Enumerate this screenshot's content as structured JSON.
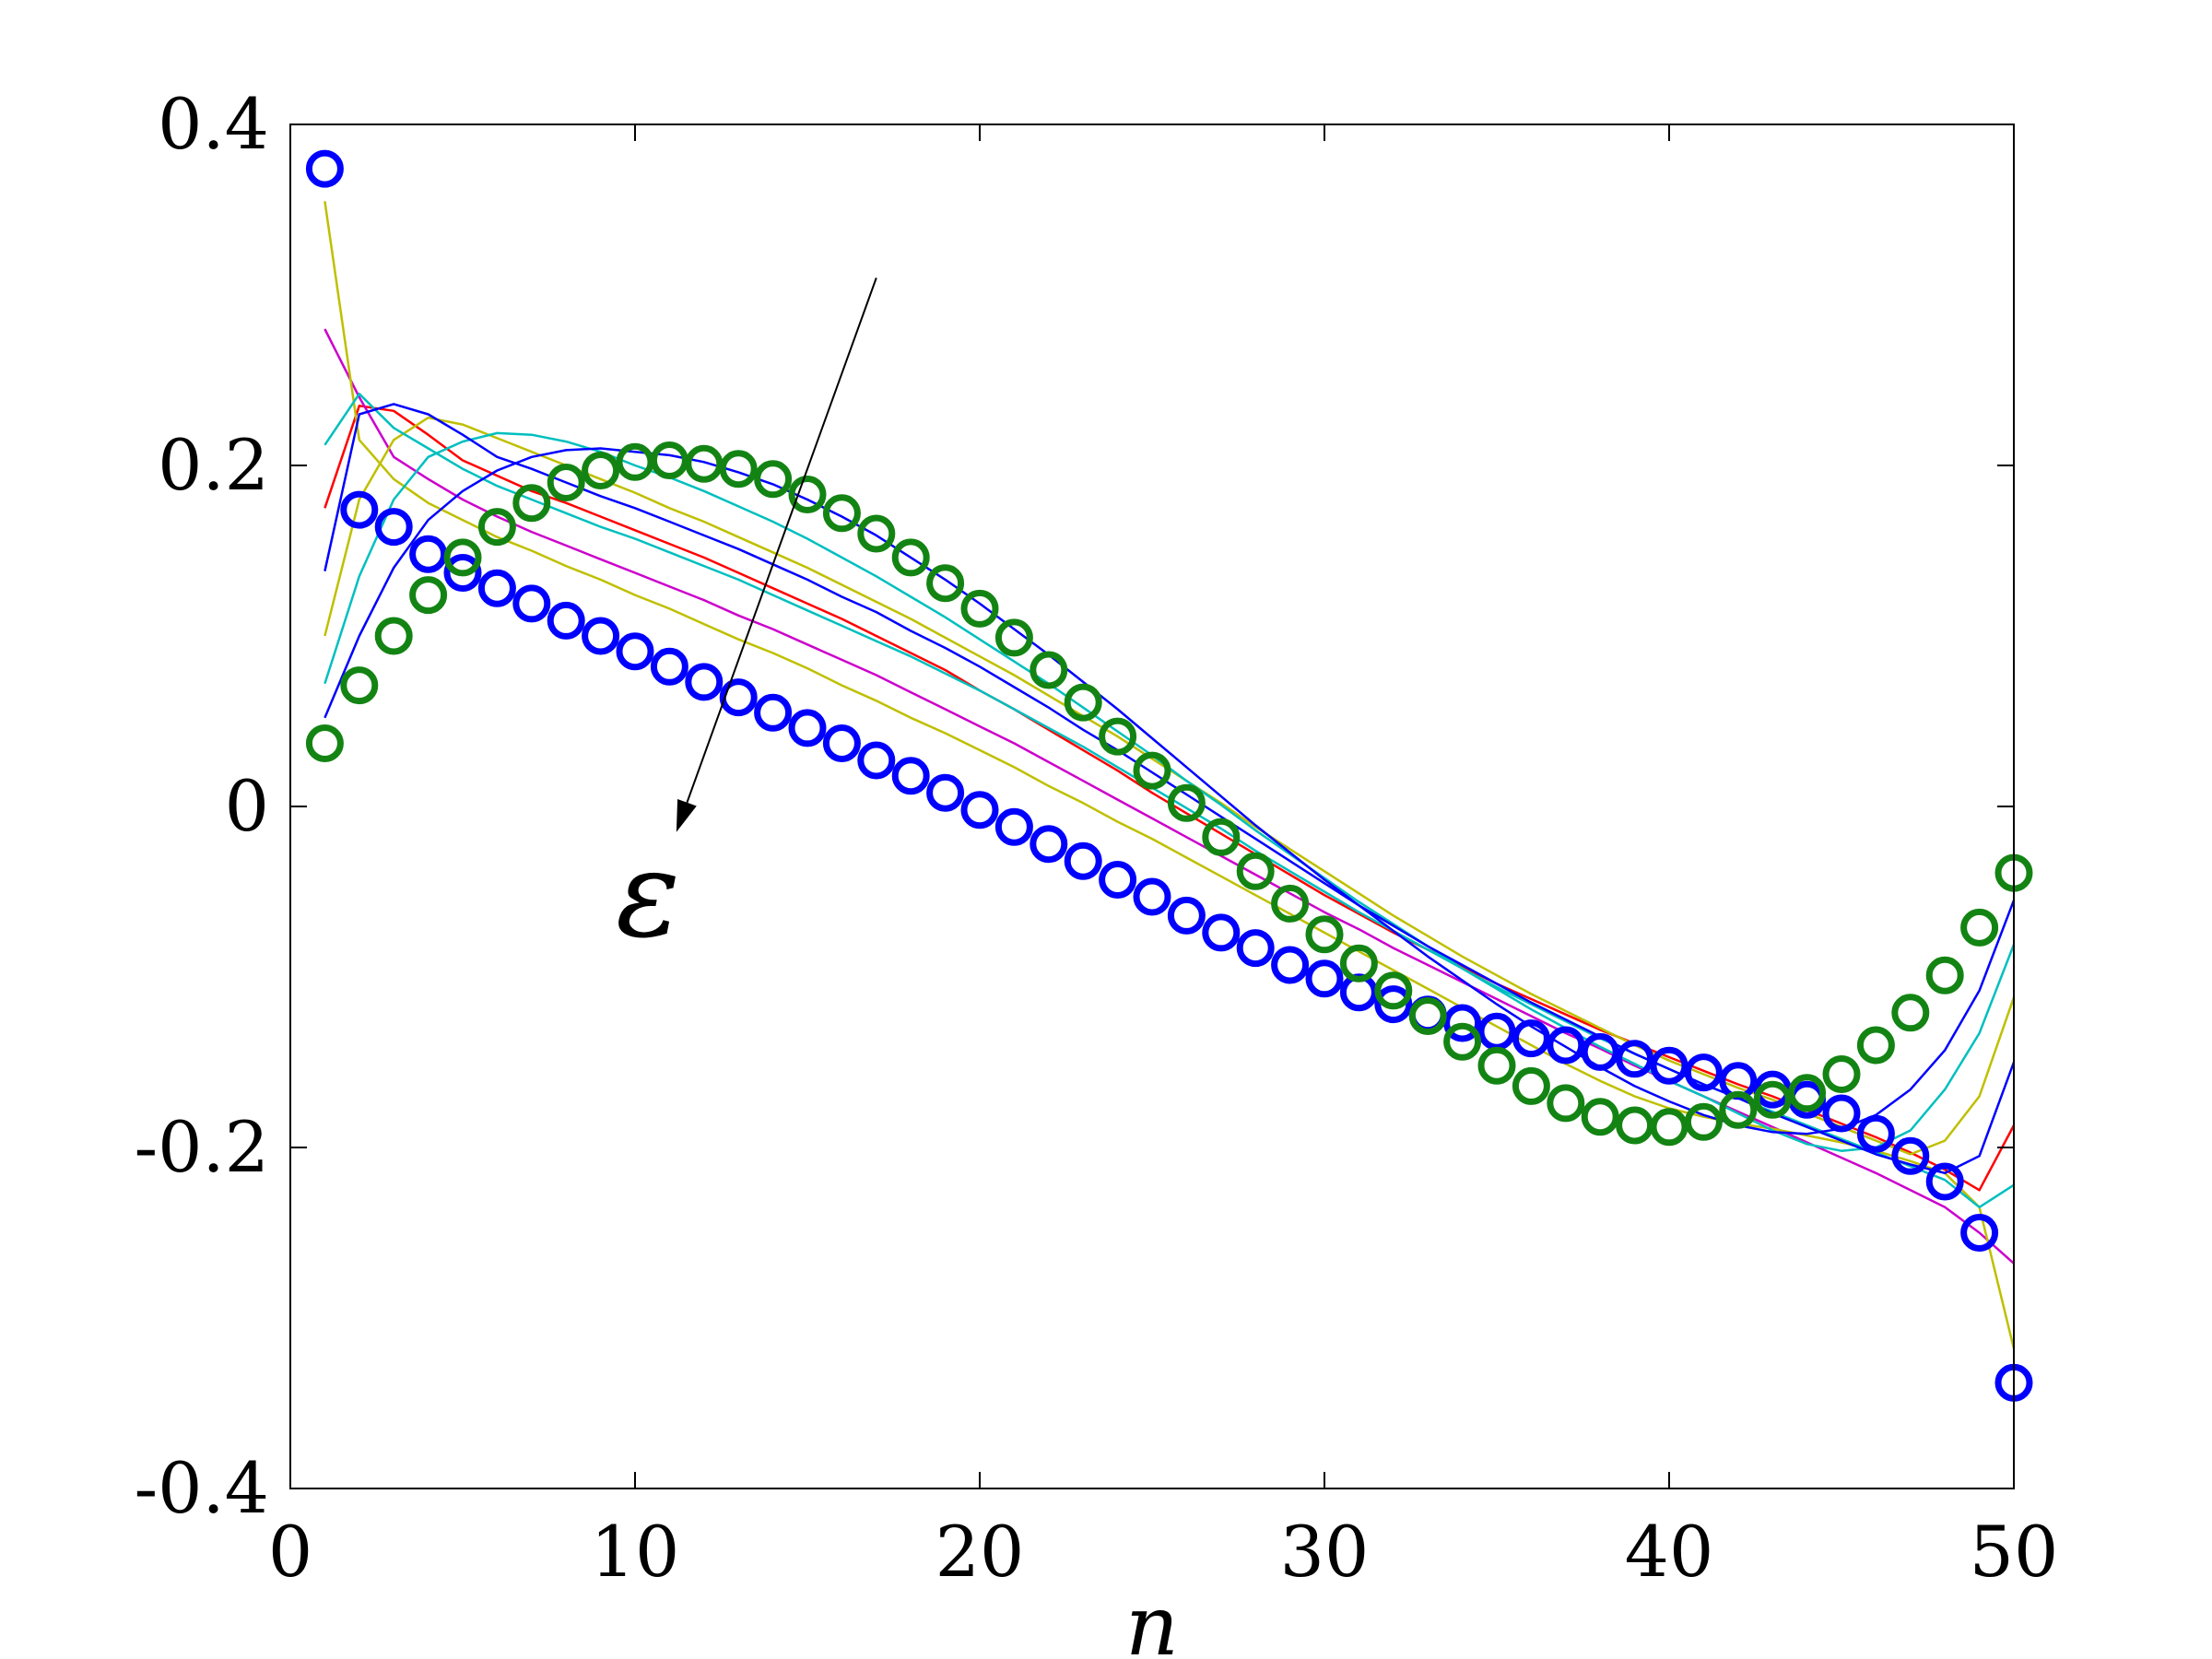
{
  "chart_data": {
    "type": "line",
    "title": "",
    "xlabel": "n",
    "ylabel": "",
    "xlim": [
      0,
      50
    ],
    "ylim": [
      -0.4,
      0.4
    ],
    "x_ticks": [
      0,
      10,
      20,
      30,
      40,
      50
    ],
    "x_tick_labels": [
      "0",
      "10",
      "20",
      "30",
      "40",
      "50"
    ],
    "y_ticks": [
      0.4,
      0.2,
      0,
      -0.2,
      -0.4
    ],
    "y_tick_labels": [
      "0.4",
      "0.2",
      "0",
      "-0.2",
      "-0.4"
    ],
    "grid": false,
    "legend": "none",
    "annotation": {
      "text": "ε",
      "arrow_from": [
        17,
        0.31
      ],
      "arrow_to": [
        11.2,
        -0.015
      ]
    },
    "x": [
      1,
      2,
      3,
      4,
      5,
      6,
      7,
      8,
      9,
      10,
      11,
      12,
      13,
      14,
      15,
      16,
      17,
      18,
      19,
      20,
      21,
      22,
      23,
      24,
      25,
      26,
      27,
      28,
      29,
      30,
      31,
      32,
      33,
      34,
      35,
      36,
      37,
      38,
      39,
      40,
      41,
      42,
      43,
      44,
      45,
      46,
      47,
      48,
      49,
      50
    ],
    "series": [
      {
        "style": "markers",
        "color": "#0000ff",
        "values": [
          0.374,
          0.174,
          0.164,
          0.148,
          0.137,
          0.128,
          0.119,
          0.109,
          0.1,
          0.091,
          0.082,
          0.073,
          0.064,
          0.055,
          0.046,
          0.037,
          0.027,
          0.018,
          0.008,
          -0.002,
          -0.012,
          -0.022,
          -0.032,
          -0.043,
          -0.053,
          -0.064,
          -0.074,
          -0.083,
          -0.093,
          -0.101,
          -0.109,
          -0.116,
          -0.122,
          -0.127,
          -0.132,
          -0.136,
          -0.14,
          -0.144,
          -0.148,
          -0.152,
          -0.156,
          -0.161,
          -0.166,
          -0.172,
          -0.18,
          -0.192,
          -0.205,
          -0.22,
          -0.25,
          -0.338
        ]
      },
      {
        "style": "markers",
        "color": "#138413",
        "values": [
          0.037,
          0.071,
          0.1,
          0.124,
          0.146,
          0.164,
          0.178,
          0.19,
          0.197,
          0.202,
          0.203,
          0.201,
          0.198,
          0.192,
          0.183,
          0.172,
          0.16,
          0.146,
          0.131,
          0.116,
          0.099,
          0.08,
          0.061,
          0.041,
          0.021,
          0.002,
          -0.018,
          -0.038,
          -0.057,
          -0.075,
          -0.092,
          -0.108,
          -0.123,
          -0.138,
          -0.152,
          -0.164,
          -0.174,
          -0.182,
          -0.187,
          -0.188,
          -0.185,
          -0.178,
          -0.172,
          -0.168,
          -0.157,
          -0.14,
          -0.121,
          -0.099,
          -0.071,
          -0.039
        ]
      },
      {
        "style": "line",
        "color": "#ff0000",
        "values": [
          0.175,
          0.235,
          0.232,
          0.218,
          0.203,
          0.194,
          0.185,
          0.178,
          0.17,
          0.162,
          0.154,
          0.146,
          0.137,
          0.128,
          0.119,
          0.11,
          0.1,
          0.09,
          0.08,
          0.068,
          0.057,
          0.045,
          0.033,
          0.021,
          0.008,
          -0.004,
          -0.016,
          -0.028,
          -0.04,
          -0.052,
          -0.063,
          -0.074,
          -0.084,
          -0.094,
          -0.104,
          -0.113,
          -0.122,
          -0.131,
          -0.139,
          -0.147,
          -0.155,
          -0.163,
          -0.17,
          -0.178,
          -0.186,
          -0.194,
          -0.203,
          -0.213,
          -0.225,
          -0.187
        ]
      },
      {
        "style": "line",
        "color": "#cc00cc",
        "values": [
          0.28,
          0.24,
          0.205,
          0.192,
          0.18,
          0.17,
          0.161,
          0.153,
          0.145,
          0.137,
          0.129,
          0.121,
          0.112,
          0.104,
          0.095,
          0.086,
          0.077,
          0.067,
          0.057,
          0.047,
          0.037,
          0.026,
          0.015,
          0.004,
          -0.007,
          -0.018,
          -0.029,
          -0.04,
          -0.051,
          -0.062,
          -0.072,
          -0.083,
          -0.093,
          -0.103,
          -0.113,
          -0.123,
          -0.133,
          -0.142,
          -0.152,
          -0.161,
          -0.17,
          -0.179,
          -0.188,
          -0.197,
          -0.206,
          -0.215,
          -0.225,
          -0.235,
          -0.25,
          -0.268
        ]
      },
      {
        "style": "line",
        "color": "#bfbf00",
        "values": [
          0.355,
          0.215,
          0.192,
          0.178,
          0.168,
          0.158,
          0.15,
          0.141,
          0.133,
          0.124,
          0.116,
          0.107,
          0.098,
          0.09,
          0.081,
          0.071,
          0.062,
          0.052,
          0.043,
          0.033,
          0.023,
          0.012,
          0.002,
          -0.009,
          -0.019,
          -0.03,
          -0.041,
          -0.052,
          -0.063,
          -0.074,
          -0.085,
          -0.096,
          -0.107,
          -0.118,
          -0.129,
          -0.14,
          -0.151,
          -0.161,
          -0.17,
          -0.177,
          -0.182,
          -0.186,
          -0.189,
          -0.193,
          -0.197,
          -0.202,
          -0.208,
          -0.215,
          -0.235,
          -0.318
        ]
      },
      {
        "style": "line",
        "color": "#bfbf00",
        "values": [
          0.1,
          0.18,
          0.215,
          0.228,
          0.224,
          0.216,
          0.208,
          0.2,
          0.192,
          0.184,
          0.175,
          0.167,
          0.158,
          0.149,
          0.14,
          0.13,
          0.12,
          0.11,
          0.099,
          0.088,
          0.077,
          0.065,
          0.053,
          0.041,
          0.028,
          0.015,
          0.002,
          -0.012,
          -0.025,
          -0.038,
          -0.051,
          -0.064,
          -0.076,
          -0.088,
          -0.099,
          -0.11,
          -0.12,
          -0.13,
          -0.14,
          -0.149,
          -0.157,
          -0.165,
          -0.172,
          -0.18,
          -0.188,
          -0.196,
          -0.204,
          -0.196,
          -0.17,
          -0.112
        ]
      },
      {
        "style": "line",
        "color": "#00bfbf",
        "values": [
          0.212,
          0.242,
          0.222,
          0.21,
          0.198,
          0.188,
          0.18,
          0.172,
          0.164,
          0.157,
          0.149,
          0.141,
          0.133,
          0.124,
          0.115,
          0.106,
          0.097,
          0.088,
          0.078,
          0.068,
          0.057,
          0.046,
          0.035,
          0.023,
          0.011,
          -0.001,
          -0.013,
          -0.026,
          -0.038,
          -0.05,
          -0.062,
          -0.073,
          -0.084,
          -0.095,
          -0.106,
          -0.116,
          -0.126,
          -0.136,
          -0.145,
          -0.154,
          -0.163,
          -0.171,
          -0.179,
          -0.187,
          -0.195,
          -0.203,
          -0.211,
          -0.219,
          -0.235,
          -0.222
        ]
      },
      {
        "style": "line",
        "color": "#00bfbf",
        "values": [
          0.072,
          0.135,
          0.18,
          0.205,
          0.214,
          0.219,
          0.218,
          0.214,
          0.208,
          0.2,
          0.193,
          0.185,
          0.176,
          0.167,
          0.157,
          0.146,
          0.135,
          0.123,
          0.111,
          0.098,
          0.085,
          0.072,
          0.058,
          0.044,
          0.03,
          0.015,
          0.001,
          -0.014,
          -0.028,
          -0.042,
          -0.056,
          -0.069,
          -0.082,
          -0.095,
          -0.107,
          -0.119,
          -0.13,
          -0.141,
          -0.151,
          -0.161,
          -0.17,
          -0.18,
          -0.19,
          -0.198,
          -0.202,
          -0.2,
          -0.19,
          -0.166,
          -0.133,
          -0.081
        ]
      },
      {
        "style": "line",
        "color": "#0000ff",
        "values": [
          0.138,
          0.23,
          0.236,
          0.23,
          0.218,
          0.205,
          0.198,
          0.19,
          0.182,
          0.175,
          0.167,
          0.159,
          0.151,
          0.142,
          0.133,
          0.123,
          0.114,
          0.103,
          0.093,
          0.082,
          0.07,
          0.058,
          0.045,
          0.033,
          0.02,
          0.007,
          -0.006,
          -0.019,
          -0.032,
          -0.045,
          -0.058,
          -0.07,
          -0.082,
          -0.093,
          -0.104,
          -0.115,
          -0.125,
          -0.135,
          -0.145,
          -0.154,
          -0.163,
          -0.171,
          -0.18,
          -0.188,
          -0.196,
          -0.204,
          -0.21,
          -0.215,
          -0.205,
          -0.15
        ]
      },
      {
        "style": "line",
        "color": "#0000ff",
        "values": [
          0.052,
          0.1,
          0.14,
          0.168,
          0.185,
          0.197,
          0.205,
          0.209,
          0.21,
          0.208,
          0.206,
          0.202,
          0.196,
          0.189,
          0.18,
          0.17,
          0.159,
          0.146,
          0.133,
          0.119,
          0.104,
          0.089,
          0.073,
          0.057,
          0.04,
          0.023,
          0.006,
          -0.011,
          -0.027,
          -0.043,
          -0.058,
          -0.073,
          -0.088,
          -0.102,
          -0.116,
          -0.129,
          -0.141,
          -0.153,
          -0.164,
          -0.173,
          -0.181,
          -0.187,
          -0.191,
          -0.192,
          -0.189,
          -0.181,
          -0.166,
          -0.143,
          -0.108,
          -0.055
        ]
      }
    ]
  }
}
